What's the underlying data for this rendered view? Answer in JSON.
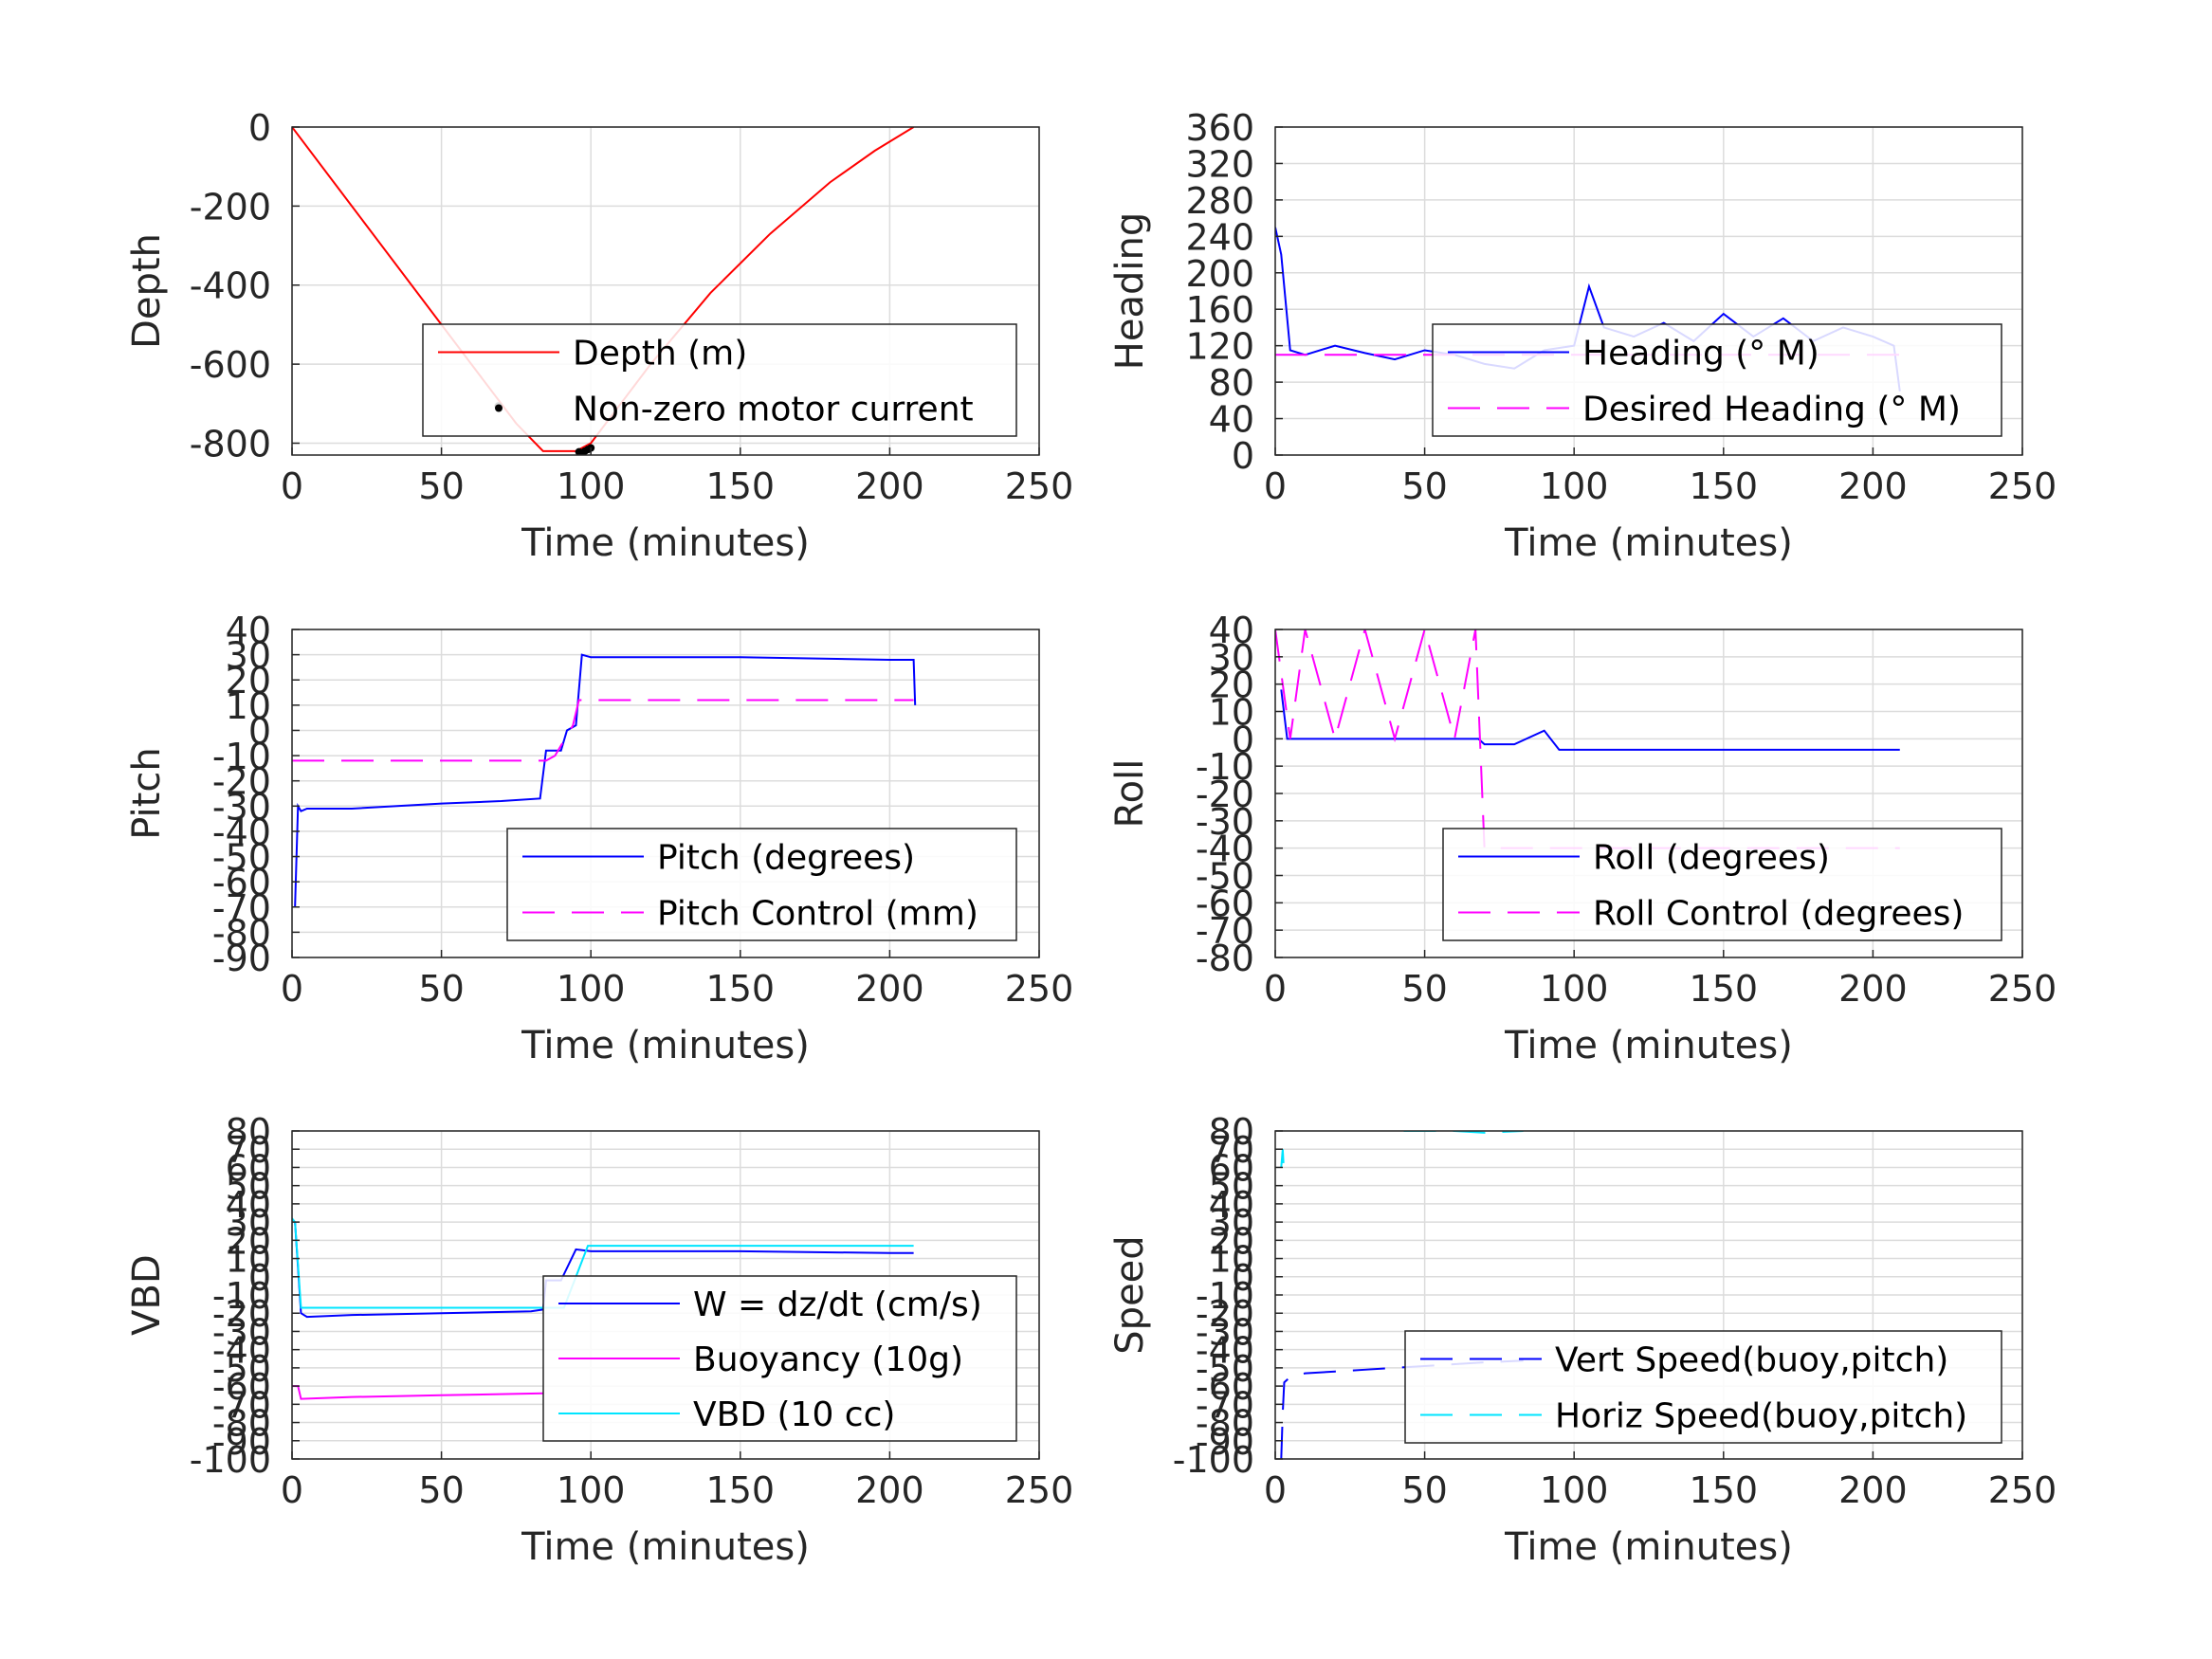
{
  "chart_data": [
    {
      "id": "depth",
      "type": "line",
      "xlabel": "Time (minutes)",
      "ylabel": "Depth",
      "xlim": [
        0,
        250
      ],
      "ylim": [
        -830,
        0
      ],
      "xticks": [
        0,
        50,
        100,
        150,
        200,
        250
      ],
      "yticks": [
        0,
        -200,
        -400,
        -600,
        -800
      ],
      "grid": true,
      "legend_position": "lower-right",
      "series": [
        {
          "name": "Depth (m)",
          "color": "#ff0000",
          "style": "solid",
          "x": [
            0,
            20,
            40,
            60,
            75,
            84,
            95,
            100,
            120,
            140,
            160,
            180,
            195,
            208
          ],
          "y": [
            0,
            -200,
            -400,
            -600,
            -750,
            -820,
            -820,
            -800,
            -600,
            -420,
            -270,
            -140,
            -60,
            0
          ]
        },
        {
          "name": "Non-zero motor current",
          "color": "#000000",
          "style": "marker",
          "x": [
            69,
            96,
            97,
            98,
            99,
            100
          ],
          "y": [
            -706,
            -822,
            -824,
            -820,
            -816,
            -812
          ]
        }
      ]
    },
    {
      "id": "heading",
      "type": "line",
      "xlabel": "Time (minutes)",
      "ylabel": "Heading",
      "xlim": [
        0,
        250
      ],
      "ylim": [
        0,
        360
      ],
      "xticks": [
        0,
        50,
        100,
        150,
        200,
        250
      ],
      "yticks": [
        0,
        40,
        80,
        120,
        160,
        200,
        240,
        280,
        320,
        360
      ],
      "grid": true,
      "legend_position": "lower-right",
      "series": [
        {
          "name": "Heading (° M)",
          "color": "#0000ff",
          "style": "solid",
          "x": [
            0,
            2,
            5,
            10,
            20,
            30,
            40,
            50,
            60,
            70,
            80,
            90,
            100,
            105,
            110,
            120,
            130,
            140,
            150,
            160,
            170,
            180,
            190,
            200,
            207,
            209
          ],
          "y": [
            250,
            220,
            115,
            110,
            120,
            112,
            105,
            115,
            110,
            100,
            95,
            115,
            120,
            185,
            140,
            130,
            145,
            125,
            155,
            130,
            150,
            125,
            140,
            130,
            120,
            70
          ]
        },
        {
          "name": "Desired Heading (° M)",
          "color": "#ff00ff",
          "style": "dashed",
          "x": [
            0,
            209
          ],
          "y": [
            110,
            110
          ]
        }
      ]
    },
    {
      "id": "pitch",
      "type": "line",
      "xlabel": "Time (minutes)",
      "ylabel": "Pitch",
      "xlim": [
        0,
        250
      ],
      "ylim": [
        -90,
        40
      ],
      "xticks": [
        0,
        50,
        100,
        150,
        200,
        250
      ],
      "yticks": [
        40,
        30,
        20,
        10,
        0,
        -10,
        -20,
        -30,
        -40,
        -50,
        -60,
        -70,
        -80,
        -90
      ],
      "grid": true,
      "legend_position": "lower-right",
      "series": [
        {
          "name": "Pitch (degrees)",
          "color": "#0000ff",
          "style": "solid",
          "x": [
            1,
            2,
            3,
            5,
            20,
            50,
            70,
            83,
            85,
            90,
            92,
            95,
            97,
            100,
            150,
            200,
            208,
            208.5
          ],
          "y": [
            -70,
            -30,
            -32,
            -31,
            -31,
            -29,
            -28,
            -27,
            -8,
            -8,
            0,
            2,
            30,
            29,
            29,
            28,
            28,
            10
          ]
        },
        {
          "name": "Pitch Control (mm)",
          "color": "#ff00ff",
          "style": "dashed",
          "x": [
            0,
            85,
            88,
            94,
            96,
            208
          ],
          "y": [
            -12,
            -12,
            -10,
            2,
            12,
            12
          ]
        }
      ]
    },
    {
      "id": "roll",
      "type": "line",
      "xlabel": "Time (minutes)",
      "ylabel": "Roll",
      "xlim": [
        0,
        250
      ],
      "ylim": [
        -80,
        40
      ],
      "xticks": [
        0,
        50,
        100,
        150,
        200,
        250
      ],
      "yticks": [
        40,
        30,
        20,
        10,
        0,
        -10,
        -20,
        -30,
        -40,
        -50,
        -60,
        -70,
        -80
      ],
      "grid": true,
      "legend_position": "lower-right",
      "series": [
        {
          "name": "Roll (degrees)",
          "color": "#0000ff",
          "style": "solid",
          "x": [
            2,
            4,
            5,
            10,
            20,
            50,
            68,
            70,
            80,
            90,
            95,
            100,
            110,
            120,
            150,
            180,
            200,
            209
          ],
          "y": [
            18,
            0,
            0,
            0,
            0,
            0,
            0,
            -2,
            -2,
            3,
            -4,
            -4,
            -4,
            -4,
            -4,
            -4,
            -4,
            -4
          ]
        },
        {
          "name": "Roll Control (degrees)",
          "color": "#ff00ff",
          "style": "dashed",
          "x": [
            0,
            5,
            10,
            20,
            30,
            40,
            50,
            60,
            67,
            70,
            100,
            209
          ],
          "y": [
            40,
            0,
            40,
            0,
            40,
            0,
            40,
            0,
            40,
            -40,
            -40,
            -40
          ]
        }
      ]
    },
    {
      "id": "vbd",
      "type": "line",
      "xlabel": "Time (minutes)",
      "ylabel": "VBD",
      "xlim": [
        0,
        250
      ],
      "ylim": [
        -100,
        80
      ],
      "xticks": [
        0,
        50,
        100,
        150,
        200,
        250
      ],
      "yticks": [
        80,
        70,
        60,
        50,
        40,
        30,
        20,
        10,
        0,
        -10,
        -20,
        -30,
        -40,
        -50,
        -60,
        -70,
        -80,
        -90,
        -100
      ],
      "grid": true,
      "legend_position": "lower-right",
      "series": [
        {
          "name": "W = dz/dt (cm/s)",
          "color": "#0000ff",
          "style": "solid",
          "x": [
            1,
            3,
            5,
            20,
            50,
            80,
            84,
            85,
            90,
            95,
            100,
            150,
            200,
            208
          ],
          "y": [
            30,
            -20,
            -22,
            -21,
            -20,
            -19,
            -18,
            -2,
            -2,
            15,
            14,
            14,
            13,
            13
          ]
        },
        {
          "name": "Buoyancy (10g)",
          "color": "#ff00ff",
          "style": "solid",
          "x": [
            0,
            2,
            3,
            20,
            50,
            84
          ],
          "y": [
            -60,
            -60,
            -67,
            -66,
            -65,
            -64
          ]
        },
        {
          "name": "VBD (10 cc)",
          "color": "#00e5ff",
          "style": "solid",
          "x": [
            0,
            1,
            3,
            5,
            20,
            50,
            85,
            91,
            99,
            100,
            150,
            208
          ],
          "y": [
            32,
            30,
            -17,
            -17,
            -17,
            -17,
            -17,
            -17,
            17,
            17,
            17,
            17
          ]
        }
      ]
    },
    {
      "id": "speed",
      "type": "line",
      "xlabel": "Time (minutes)",
      "ylabel": "Speed",
      "xlim": [
        0,
        250
      ],
      "ylim": [
        -100,
        80
      ],
      "xticks": [
        0,
        50,
        100,
        150,
        200,
        250
      ],
      "yticks": [
        80,
        70,
        60,
        50,
        40,
        30,
        20,
        10,
        0,
        -10,
        -20,
        -30,
        -40,
        -50,
        -60,
        -70,
        -80,
        -90,
        -100
      ],
      "grid": true,
      "legend_position": "lower-right",
      "series": [
        {
          "name": "Vert Speed(buoy,pitch)",
          "color": "#0000ff",
          "style": "dashed",
          "x": [
            2,
            2.5,
            3,
            5,
            10,
            20,
            30,
            40,
            50,
            60,
            70,
            83
          ],
          "y": [
            -100,
            -75,
            -58,
            -55,
            -53,
            -52,
            -51,
            -50,
            -49,
            -48,
            -47,
            -46
          ]
        },
        {
          "name": "Horiz Speed(buoy,pitch)",
          "color": "#00e5ff",
          "style": "dashed",
          "x": [
            2,
            2.5,
            3
          ],
          "y": [
            60,
            70,
            55
          ],
          "x2": [
            43,
            60,
            70,
            83
          ],
          "y2": [
            80,
            80,
            79,
            80
          ]
        }
      ]
    }
  ]
}
